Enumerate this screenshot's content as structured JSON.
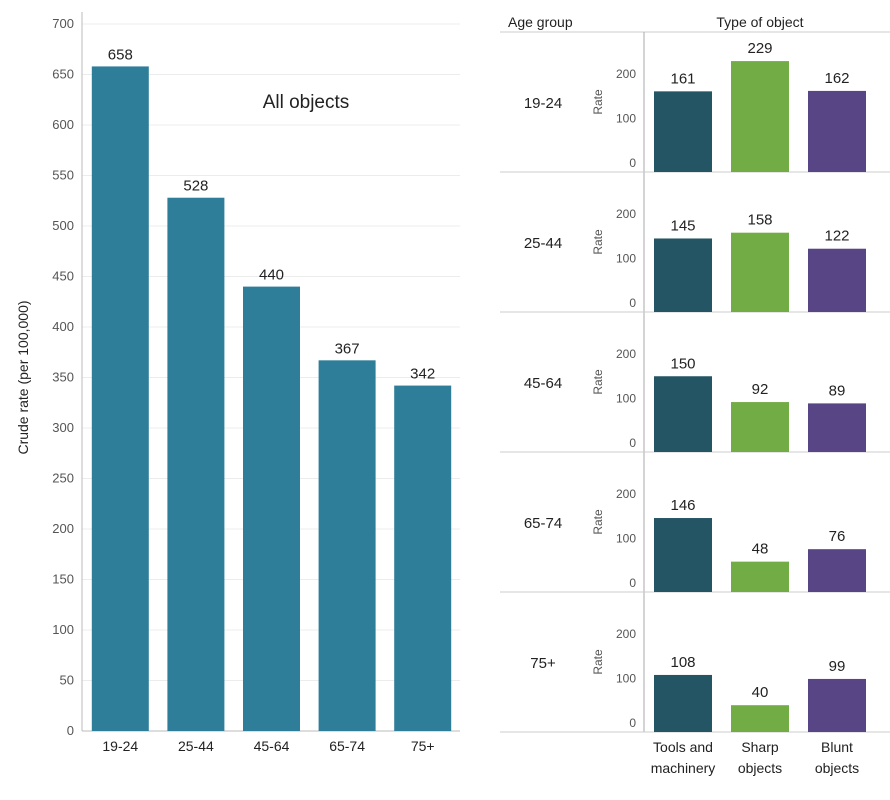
{
  "chart_data": [
    {
      "type": "bar",
      "title": "All objects",
      "ylabel": "Crude rate (per 100,000)",
      "xlabel": "",
      "categories": [
        "19-24",
        "25-44",
        "45-64",
        "65-74",
        "75+"
      ],
      "values": [
        658,
        528,
        440,
        367,
        342
      ],
      "ylim": [
        0,
        700
      ],
      "yticks": [
        0,
        50,
        100,
        150,
        200,
        250,
        300,
        350,
        400,
        450,
        500,
        550,
        600,
        650,
        700
      ],
      "color": "#2e7e99",
      "grid": true
    },
    {
      "type": "bar",
      "row_header": "Age group",
      "column_header": "Type of object",
      "ylabel": "Rate",
      "ylim": [
        0,
        200
      ],
      "yticks": [
        0,
        100,
        200
      ],
      "categories": [
        "Tools and machinery",
        "Sharp objects",
        "Blunt objects"
      ],
      "category_lines": [
        [
          "Tools and",
          "machinery"
        ],
        [
          "Sharp",
          "objects"
        ],
        [
          "Blunt",
          "objects"
        ]
      ],
      "colors": [
        "#245565",
        "#72ac45",
        "#574585"
      ],
      "series": [
        {
          "name": "19-24",
          "values": [
            161,
            229,
            162
          ]
        },
        {
          "name": "25-44",
          "values": [
            145,
            158,
            122
          ]
        },
        {
          "name": "45-64",
          "values": [
            150,
            92,
            89
          ]
        },
        {
          "name": "65-74",
          "values": [
            146,
            48,
            76
          ]
        },
        {
          "name": "75+",
          "values": [
            108,
            40,
            99
          ]
        }
      ]
    }
  ]
}
